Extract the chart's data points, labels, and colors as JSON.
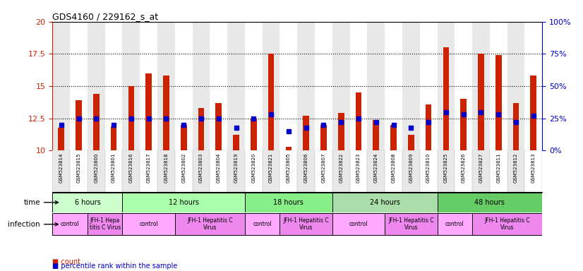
{
  "title": "GDS4160 / 229162_s_at",
  "samples": [
    "GSM523814",
    "GSM523815",
    "GSM523800",
    "GSM523801",
    "GSM523816",
    "GSM523817",
    "GSM523818",
    "GSM523802",
    "GSM523803",
    "GSM523804",
    "GSM523819",
    "GSM523820",
    "GSM523821",
    "GSM523805",
    "GSM523806",
    "GSM523807",
    "GSM523822",
    "GSM523823",
    "GSM523824",
    "GSM523808",
    "GSM523809",
    "GSM523810",
    "GSM523825",
    "GSM523826",
    "GSM523827",
    "GSM523811",
    "GSM523812",
    "GSM523813"
  ],
  "count_values": [
    11.8,
    13.9,
    14.4,
    11.9,
    15.0,
    16.0,
    15.8,
    12.0,
    13.3,
    13.7,
    11.2,
    12.5,
    17.5,
    10.3,
    12.7,
    12.0,
    12.9,
    14.5,
    12.4,
    12.0,
    11.2,
    13.6,
    18.0,
    14.0,
    17.5,
    17.4,
    13.7,
    15.8
  ],
  "percentile_values": [
    20,
    25,
    25,
    20,
    25,
    25,
    25,
    20,
    25,
    25,
    18,
    25,
    28,
    15,
    18,
    20,
    22,
    25,
    22,
    20,
    18,
    22,
    30,
    28,
    30,
    28,
    22,
    27
  ],
  "y_min": 10,
  "y_max": 20,
  "y_ticks_left": [
    10,
    12.5,
    15,
    17.5,
    20
  ],
  "y_ticks_right": [
    0,
    25,
    50,
    75,
    100
  ],
  "percentile_scale_max": 100,
  "time_groups": [
    {
      "label": "6 hours",
      "start": 0,
      "end": 4,
      "color": "#ccffcc"
    },
    {
      "label": "12 hours",
      "start": 4,
      "end": 11,
      "color": "#aaffaa"
    },
    {
      "label": "18 hours",
      "start": 11,
      "end": 16,
      "color": "#88ee88"
    },
    {
      "label": "24 hours",
      "start": 16,
      "end": 22,
      "color": "#aaddaa"
    },
    {
      "label": "48 hours",
      "start": 22,
      "end": 28,
      "color": "#66cc66"
    }
  ],
  "infection_groups": [
    {
      "label": "control",
      "start": 0,
      "end": 2,
      "color": "#ffaaff"
    },
    {
      "label": "JFH-1 Hepa\ntitis C Virus",
      "start": 2,
      "end": 4,
      "color": "#ee88ee"
    },
    {
      "label": "control",
      "start": 4,
      "end": 7,
      "color": "#ffaaff"
    },
    {
      "label": "JFH-1 Hepatitis C\nVirus",
      "start": 7,
      "end": 11,
      "color": "#ee88ee"
    },
    {
      "label": "control",
      "start": 11,
      "end": 13,
      "color": "#ffaaff"
    },
    {
      "label": "JFH-1 Hepatitis C\nVirus",
      "start": 13,
      "end": 16,
      "color": "#ee88ee"
    },
    {
      "label": "control",
      "start": 16,
      "end": 19,
      "color": "#ffaaff"
    },
    {
      "label": "JFH-1 Hepatitis C\nVirus",
      "start": 19,
      "end": 22,
      "color": "#ee88ee"
    },
    {
      "label": "control",
      "start": 22,
      "end": 24,
      "color": "#ffaaff"
    },
    {
      "label": "JFH-1 Hepatitis C\nVirus",
      "start": 24,
      "end": 28,
      "color": "#ee88ee"
    }
  ],
  "bar_color": "#cc2200",
  "dot_color": "#0000cc",
  "bg_color": "#ffffff",
  "left_axis_color": "#cc2200",
  "right_axis_color": "#0000cc",
  "bar_width": 0.35,
  "dot_size": 4,
  "col_bg_even": "#e8e8e8",
  "col_bg_odd": "#ffffff"
}
